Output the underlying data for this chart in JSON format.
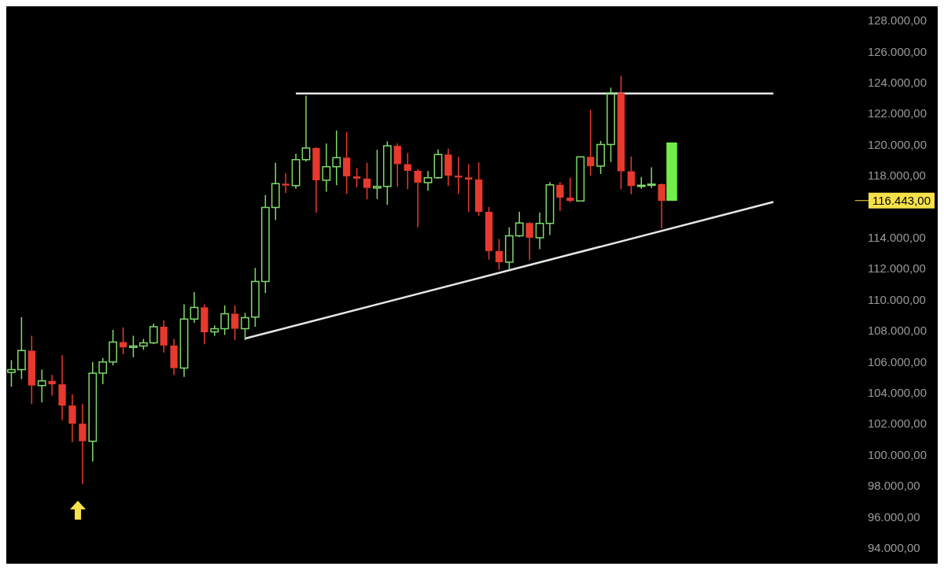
{
  "chart_data": {
    "type": "candlestick",
    "categories": [
      null,
      null,
      null,
      null,
      null,
      null,
      null,
      null,
      null,
      null,
      null,
      null,
      null,
      null,
      null,
      null,
      null,
      null,
      null,
      null,
      null,
      null,
      null,
      null,
      null,
      null,
      null,
      null,
      null,
      null,
      null,
      null,
      null,
      null,
      null,
      null,
      null,
      null,
      null,
      null,
      null,
      null,
      null,
      null,
      null,
      null,
      null,
      null,
      null,
      null,
      null,
      null,
      null,
      null,
      null,
      null,
      null,
      null,
      null,
      null,
      null,
      null,
      null,
      null,
      null,
      null,
      null,
      null,
      null,
      null,
      null,
      null,
      null,
      null,
      null,
      null,
      null,
      null,
      null,
      null,
      null,
      null,
      null,
      null
    ],
    "ohlc": [
      [
        105370,
        106150,
        104440,
        105540
      ],
      [
        105540,
        108930,
        104940,
        106770
      ],
      [
        106770,
        107730,
        103330,
        104520
      ],
      [
        104520,
        105540,
        103440,
        104820
      ],
      [
        104820,
        105200,
        103870,
        104600
      ],
      [
        104600,
        106470,
        102290,
        103230
      ],
      [
        103230,
        103940,
        100880,
        102060
      ],
      [
        102060,
        103330,
        98170,
        100930
      ],
      [
        100930,
        106040,
        99620,
        105320
      ],
      [
        105320,
        106290,
        104610,
        106040
      ],
      [
        106040,
        108110,
        105820,
        107320
      ],
      [
        107320,
        108260,
        106540,
        106980
      ],
      [
        106980,
        107730,
        106350,
        107070
      ],
      [
        107070,
        107530,
        106820,
        107270
      ],
      [
        107270,
        108510,
        107200,
        108310
      ],
      [
        108310,
        108730,
        106650,
        107100
      ],
      [
        107100,
        107530,
        105200,
        105640
      ],
      [
        105640,
        109760,
        105070,
        108810
      ],
      [
        108810,
        110560,
        108560,
        109560
      ],
      [
        109560,
        109760,
        107180,
        107950
      ],
      [
        107980,
        108400,
        107720,
        108180
      ],
      [
        108180,
        109680,
        107780,
        109150
      ],
      [
        109150,
        109680,
        107450,
        108180
      ],
      [
        108180,
        109200,
        107450,
        108900
      ],
      [
        108930,
        112110,
        108310,
        111230
      ],
      [
        111230,
        116800,
        110480,
        116000
      ],
      [
        116000,
        118880,
        115190,
        117530
      ],
      [
        117530,
        118210,
        116930,
        117410
      ],
      [
        117410,
        119460,
        117210,
        119080
      ],
      [
        119080,
        123200,
        118960,
        119830
      ],
      [
        119830,
        119870,
        115670,
        117750
      ],
      [
        117750,
        120120,
        117010,
        118630
      ],
      [
        118630,
        120960,
        117430,
        119210
      ],
      [
        119210,
        120870,
        116880,
        118000
      ],
      [
        118000,
        118540,
        117300,
        117860
      ],
      [
        117860,
        118880,
        116520,
        117260
      ],
      [
        117260,
        119710,
        116550,
        117360
      ],
      [
        117360,
        120260,
        116170,
        119970
      ],
      [
        119970,
        120120,
        117330,
        118790
      ],
      [
        118790,
        119510,
        117180,
        118360
      ],
      [
        118360,
        118460,
        114720,
        117600
      ],
      [
        117600,
        118350,
        117080,
        117910
      ],
      [
        117910,
        119740,
        117850,
        119410
      ],
      [
        119410,
        119790,
        117380,
        118050
      ],
      [
        118050,
        119260,
        116880,
        117930
      ],
      [
        117930,
        118790,
        115720,
        117800
      ],
      [
        117800,
        118910,
        115470,
        115720
      ],
      [
        115720,
        116020,
        112640,
        113190
      ],
      [
        113190,
        113970,
        111980,
        112470
      ],
      [
        112470,
        114720,
        111980,
        114170
      ],
      [
        114170,
        115720,
        114090,
        115000
      ],
      [
        115000,
        115050,
        112610,
        114050
      ],
      [
        114050,
        115670,
        113310,
        114970
      ],
      [
        114970,
        117630,
        114220,
        117460
      ],
      [
        117460,
        117630,
        115770,
        116630
      ],
      [
        116630,
        117910,
        116330,
        116420
      ],
      [
        116420,
        119260,
        116420,
        119260
      ],
      [
        119260,
        122290,
        118050,
        118660
      ],
      [
        118660,
        120290,
        118160,
        120060
      ],
      [
        120060,
        123730,
        118930,
        123370
      ],
      [
        123370,
        124480,
        117160,
        118330
      ],
      [
        118330,
        119290,
        116850,
        117380
      ],
      [
        117380,
        117960,
        117210,
        117430
      ],
      [
        117430,
        118590,
        117260,
        117500
      ],
      [
        117500,
        117550,
        114640,
        116420
      ],
      null,
      null,
      null,
      null,
      null,
      null,
      null,
      null,
      null,
      null,
      null,
      null,
      null,
      null,
      null,
      null,
      null,
      null,
      null
    ],
    "colors": [
      "#7fd96a",
      "#7fd96a",
      "#e8392e",
      "#7fd96a",
      "#e8392e",
      "#e8392e",
      "#e8392e",
      "#e8392e",
      "#7fd96a",
      "#7fd96a",
      "#7fd96a",
      "#e8392e",
      "#7fd96a",
      "#7fd96a",
      "#7fd96a",
      "#e8392e",
      "#e8392e",
      "#7fd96a",
      "#7fd96a",
      "#e8392e",
      "#7fd96a",
      "#7fd96a",
      "#e8392e",
      "#7fd96a",
      "#7fd96a",
      "#7fd96a",
      "#7fd96a",
      "#e8392e",
      "#7fd96a",
      "#7fd96a",
      "#e8392e",
      "#7fd96a",
      "#7fd96a",
      "#e8392e",
      "#e8392e",
      "#e8392e",
      "#7fd96a",
      "#7fd96a",
      "#e8392e",
      "#e8392e",
      "#e8392e",
      "#7fd96a",
      "#7fd96a",
      "#e8392e",
      "#e8392e",
      "#e8392e",
      "#e8392e",
      "#e8392e",
      "#e8392e",
      "#7fd96a",
      "#7fd96a",
      "#e8392e",
      "#7fd96a",
      "#7fd96a",
      "#e8392e",
      "#e8392e",
      "#7fd96a",
      "#e8392e",
      "#7fd96a",
      "#7fd96a",
      "#e8392e",
      "#e8392e",
      "#7fd96a",
      "#7fd96a",
      "#e8392e",
      null,
      null,
      null,
      null,
      null,
      null,
      null,
      null,
      null,
      null,
      null,
      null,
      null,
      null,
      null,
      null,
      null,
      null,
      null
    ],
    "series": [
      {
        "type": "line",
        "values": [
          null,
          null,
          null,
          null,
          null,
          null,
          null,
          null,
          null,
          null,
          null,
          null,
          null,
          null,
          null,
          null,
          null,
          null,
          null,
          null,
          null,
          null,
          null,
          107550,
          null,
          null,
          null,
          null,
          null,
          null,
          null,
          null,
          null,
          null,
          null,
          null,
          null,
          null,
          null,
          null,
          null,
          null,
          null,
          null,
          null,
          null,
          null,
          null,
          null,
          null,
          null,
          null,
          null,
          null,
          null,
          null,
          null,
          null,
          null,
          null,
          null,
          null,
          null,
          null,
          null,
          null,
          null,
          null,
          null,
          null,
          null,
          null,
          null,
          null,
          null,
          116350,
          null,
          null,
          null,
          null,
          null,
          null,
          null,
          null
        ],
        "color": "#e6e6e6"
      },
      {
        "type": "line",
        "values": [
          null,
          null,
          null,
          null,
          null,
          null,
          null,
          null,
          null,
          null,
          null,
          null,
          null,
          null,
          null,
          null,
          null,
          null,
          null,
          null,
          null,
          null,
          null,
          null,
          null,
          null,
          null,
          null,
          123350,
          null,
          null,
          null,
          null,
          null,
          null,
          null,
          null,
          null,
          null,
          null,
          null,
          null,
          null,
          null,
          null,
          null,
          null,
          null,
          null,
          null,
          null,
          null,
          null,
          null,
          null,
          null,
          null,
          null,
          null,
          null,
          null,
          null,
          null,
          null,
          null,
          null,
          null,
          null,
          null,
          null,
          null,
          null,
          null,
          null,
          null,
          123350,
          null,
          null,
          null,
          null,
          null,
          null,
          null,
          null
        ],
        "color": "#e6e6e6"
      },
      {
        "type": "bar",
        "base": [
          null,
          null,
          null,
          null,
          null,
          null,
          null,
          null,
          null,
          null,
          null,
          null,
          null,
          null,
          null,
          null,
          null,
          null,
          null,
          null,
          null,
          null,
          null,
          null,
          null,
          null,
          null,
          null,
          null,
          null,
          null,
          null,
          null,
          null,
          null,
          null,
          null,
          null,
          null,
          null,
          null,
          null,
          null,
          null,
          null,
          null,
          null,
          null,
          null,
          null,
          null,
          null,
          null,
          null,
          null,
          null,
          null,
          null,
          null,
          null,
          null,
          null,
          null,
          null,
          null,
          116443,
          null,
          null,
          null,
          null,
          null,
          null,
          null,
          null,
          null,
          null,
          null,
          null,
          null,
          null,
          null,
          null,
          null,
          null
        ],
        "values": [
          null,
          null,
          null,
          null,
          null,
          null,
          null,
          null,
          null,
          null,
          null,
          null,
          null,
          null,
          null,
          null,
          null,
          null,
          null,
          null,
          null,
          null,
          null,
          null,
          null,
          null,
          null,
          null,
          null,
          null,
          null,
          null,
          null,
          null,
          null,
          null,
          null,
          null,
          null,
          null,
          null,
          null,
          null,
          null,
          null,
          null,
          null,
          null,
          null,
          null,
          null,
          null,
          null,
          null,
          null,
          null,
          null,
          null,
          null,
          null,
          null,
          null,
          null,
          null,
          null,
          3730,
          null,
          null,
          null,
          null,
          null,
          null,
          null,
          null,
          null,
          null,
          null,
          null,
          null,
          null,
          null,
          null,
          null,
          null
        ],
        "color": "#72ee4a"
      }
    ],
    "ylim": [
      94000,
      128000
    ],
    "yticks": [
      {
        "value": 94000,
        "label": "94.000,00"
      },
      {
        "value": 96000,
        "label": "96.000,00"
      },
      {
        "value": 98000,
        "label": "98.000,00"
      },
      {
        "value": 100000,
        "label": "100.000,00"
      },
      {
        "value": 102000,
        "label": "102.000,00"
      },
      {
        "value": 104000,
        "label": "104.000,00"
      },
      {
        "value": 106000,
        "label": "106.000,00"
      },
      {
        "value": 108000,
        "label": "108.000,00"
      },
      {
        "value": 110000,
        "label": "110.000,00"
      },
      {
        "value": 112000,
        "label": "112.000,00"
      },
      {
        "value": 114000,
        "label": "114.000,00"
      },
      {
        "value": 118000,
        "label": "118.000,00"
      },
      {
        "value": 120000,
        "label": "120.000,00"
      },
      {
        "value": 122000,
        "label": "122.000,00"
      },
      {
        "value": 124000,
        "label": "124.000,00"
      },
      {
        "value": 126000,
        "label": "126.000,00"
      },
      {
        "value": 128000,
        "label": "128.000,00"
      }
    ],
    "tick_labels": "y",
    "ref_lines": [
      {
        "axis": "y",
        "value": 116443,
        "label": "116.443,00",
        "color": "#f7e14b"
      }
    ]
  }
}
